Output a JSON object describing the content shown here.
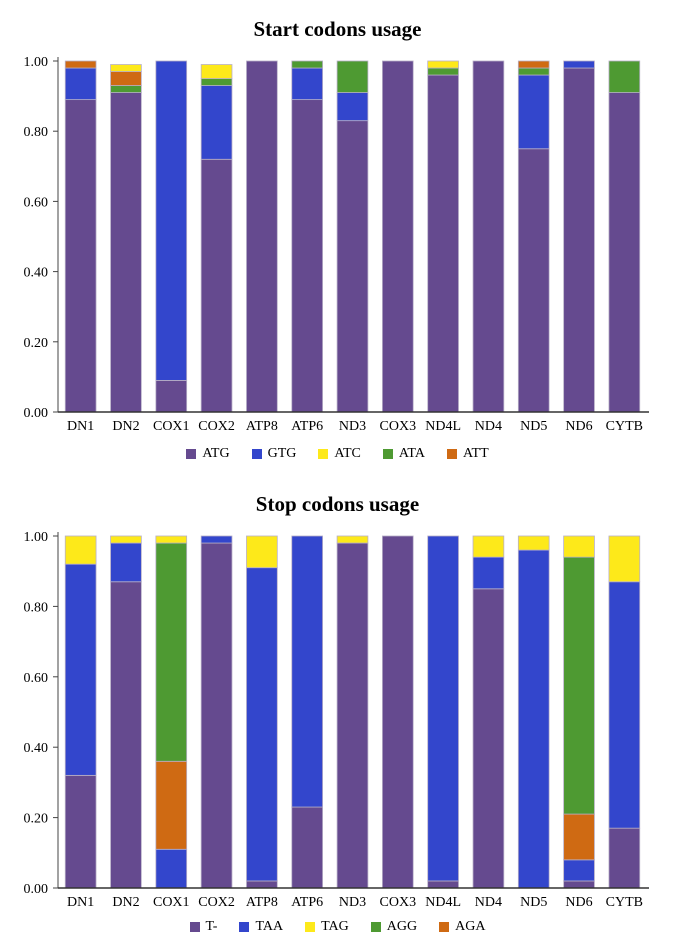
{
  "colors": {
    "ATG": "#654a8f",
    "GTG": "#3346cc",
    "ATC": "#fde91a",
    "ATA": "#4e9a32",
    "ATT": "#cf6a13",
    "T-": "#654a8f",
    "TAA": "#3346cc",
    "TAG": "#fde91a",
    "AGG": "#4e9a32",
    "AGA": "#cf6a13"
  },
  "chart_data": [
    {
      "type": "bar",
      "stacked": true,
      "title": "Start codons usage",
      "categories": [
        "DN1",
        "DN2",
        "COX1",
        "COX2",
        "ATP8",
        "ATP6",
        "ND3",
        "COX3",
        "ND4L",
        "ND4",
        "ND5",
        "ND6",
        "CYTB"
      ],
      "yticks": [
        "0.00",
        "0.20",
        "0.40",
        "0.60",
        "0.80",
        "1.00"
      ],
      "ylim": [
        0,
        1
      ],
      "legend_position": "bottom",
      "series": [
        {
          "name": "ATG",
          "values": [
            0.89,
            0.91,
            0.09,
            0.72,
            1.0,
            0.89,
            0.83,
            1.0,
            0.96,
            1.0,
            0.75,
            0.98,
            0.91
          ]
        },
        {
          "name": "GTG",
          "values": [
            0.09,
            0.0,
            0.91,
            0.21,
            0.0,
            0.09,
            0.08,
            0.0,
            0.0,
            0.0,
            0.21,
            0.02,
            0.0
          ]
        },
        {
          "name": "ATC",
          "values": [
            0.0,
            0.02,
            0.0,
            0.04,
            0.0,
            0.0,
            0.0,
            0.0,
            0.02,
            0.0,
            0.0,
            0.0,
            0.0
          ]
        },
        {
          "name": "ATA",
          "values": [
            0.0,
            0.02,
            0.0,
            0.02,
            0.0,
            0.02,
            0.09,
            0.0,
            0.02,
            0.0,
            0.02,
            0.0,
            0.09
          ]
        },
        {
          "name": "ATT",
          "values": [
            0.02,
            0.04,
            0.0,
            0.0,
            0.0,
            0.0,
            0.0,
            0.0,
            0.0,
            0.0,
            0.02,
            0.0,
            0.0
          ]
        }
      ],
      "stack_order": [
        "ATG",
        "GTG",
        "ATA",
        "ATT",
        "ATC"
      ]
    },
    {
      "type": "bar",
      "stacked": true,
      "title": "Stop codons usage",
      "categories": [
        "DN1",
        "DN2",
        "COX1",
        "COX2",
        "ATP8",
        "ATP6",
        "ND3",
        "COX3",
        "ND4L",
        "ND4",
        "ND5",
        "ND6",
        "CYTB"
      ],
      "yticks": [
        "0.00",
        "0.20",
        "0.40",
        "0.60",
        "0.80",
        "1.00"
      ],
      "ylim": [
        0,
        1
      ],
      "legend_position": "bottom",
      "series": [
        {
          "name": "T-",
          "values": [
            0.32,
            0.87,
            0.0,
            0.98,
            0.02,
            0.23,
            0.98,
            1.0,
            0.02,
            0.85,
            0.0,
            0.02,
            0.17
          ]
        },
        {
          "name": "TAA",
          "values": [
            0.6,
            0.11,
            0.11,
            0.02,
            0.89,
            0.77,
            0.0,
            0.0,
            0.98,
            0.09,
            0.96,
            0.06,
            0.7
          ]
        },
        {
          "name": "TAG",
          "values": [
            0.08,
            0.02,
            0.02,
            0.0,
            0.09,
            0.0,
            0.02,
            0.0,
            0.0,
            0.06,
            0.04,
            0.06,
            0.13
          ]
        },
        {
          "name": "AGG",
          "values": [
            0.0,
            0.0,
            0.62,
            0.0,
            0.0,
            0.0,
            0.0,
            0.0,
            0.0,
            0.0,
            0.0,
            0.73,
            0.0
          ]
        },
        {
          "name": "AGA",
          "values": [
            0.0,
            0.0,
            0.25,
            0.0,
            0.0,
            0.0,
            0.0,
            0.0,
            0.0,
            0.0,
            0.0,
            0.13,
            0.0
          ]
        }
      ],
      "stack_order": [
        "T-",
        "TAA",
        "AGA",
        "AGG",
        "TAG"
      ]
    }
  ]
}
